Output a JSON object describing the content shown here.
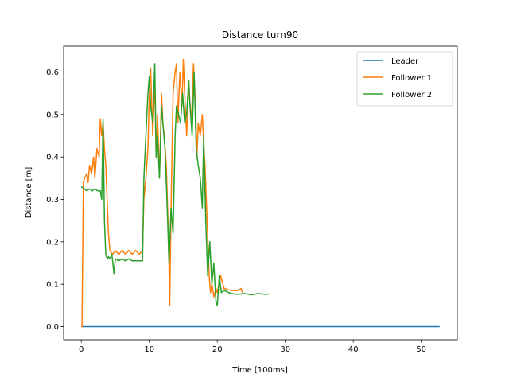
{
  "chart_data": {
    "type": "line",
    "title": "Distance turn90",
    "xlabel": "Time [100ms]",
    "ylabel": "Distance [m]",
    "xlim": [
      -2.6,
      55.3
    ],
    "ylim": [
      -0.031,
      0.661
    ],
    "xticks": [
      0,
      10,
      20,
      30,
      40,
      50
    ],
    "yticks": [
      0.0,
      0.1,
      0.2,
      0.3,
      0.4,
      0.5,
      0.6
    ],
    "xtick_labels": [
      "0",
      "10",
      "20",
      "30",
      "40",
      "50"
    ],
    "ytick_labels": [
      "0.0",
      "0.1",
      "0.2",
      "0.3",
      "0.4",
      "0.5",
      "0.6"
    ],
    "legend_position": "top-right",
    "series": [
      {
        "name": "Leader",
        "color": "#1f77b4",
        "x": [
          0,
          52.7
        ],
        "y": [
          0.0,
          0.0
        ]
      },
      {
        "name": "Follower 1",
        "color": "#ff7f0e",
        "x": [
          0,
          0.1,
          0.3,
          0.5,
          0.8,
          1.0,
          1.2,
          1.5,
          1.8,
          2.0,
          2.3,
          2.6,
          2.8,
          3.0,
          3.2,
          3.4,
          3.6,
          3.8,
          4.0,
          4.2,
          4.6,
          5.0,
          5.5,
          6.0,
          6.5,
          7.0,
          7.5,
          8.0,
          8.5,
          9.0,
          9.2,
          9.5,
          9.8,
          10.0,
          10.2,
          10.5,
          10.8,
          11.0,
          11.2,
          11.5,
          11.8,
          12.0,
          12.2,
          12.5,
          12.8,
          13.0,
          13.2,
          13.5,
          13.8,
          14.0,
          14.2,
          14.5,
          14.8,
          15.0,
          15.2,
          15.5,
          15.8,
          16.0,
          16.2,
          16.5,
          16.8,
          17.0,
          17.2,
          17.5,
          17.8,
          18.0,
          18.2,
          18.5,
          18.8,
          19.0,
          19.2,
          19.5,
          19.8,
          20.0,
          20.5,
          21.0,
          22.0,
          23.0,
          23.5,
          23.7
        ],
        "y": [
          0.0,
          0.0,
          0.34,
          0.35,
          0.36,
          0.34,
          0.38,
          0.36,
          0.4,
          0.35,
          0.42,
          0.4,
          0.49,
          0.45,
          0.48,
          0.42,
          0.38,
          0.3,
          0.22,
          0.18,
          0.17,
          0.18,
          0.17,
          0.18,
          0.17,
          0.18,
          0.17,
          0.18,
          0.17,
          0.18,
          0.3,
          0.35,
          0.42,
          0.55,
          0.61,
          0.45,
          0.58,
          0.4,
          0.5,
          0.35,
          0.55,
          0.48,
          0.45,
          0.38,
          0.22,
          0.05,
          0.28,
          0.55,
          0.6,
          0.62,
          0.48,
          0.6,
          0.52,
          0.63,
          0.55,
          0.45,
          0.58,
          0.52,
          0.48,
          0.62,
          0.52,
          0.4,
          0.48,
          0.45,
          0.5,
          0.43,
          0.38,
          0.25,
          0.12,
          0.08,
          0.1,
          0.07,
          0.09,
          0.08,
          0.12,
          0.09,
          0.085,
          0.085,
          0.09,
          0.08
        ]
      },
      {
        "name": "Follower 2",
        "color": "#2ca02c",
        "x": [
          0,
          0.4,
          0.8,
          1.2,
          1.6,
          2.0,
          2.4,
          2.8,
          3.0,
          3.2,
          3.4,
          3.6,
          3.8,
          4.0,
          4.2,
          4.5,
          4.8,
          5.0,
          5.5,
          6.0,
          6.5,
          7.0,
          7.5,
          8.0,
          8.5,
          9.0,
          9.2,
          9.5,
          9.8,
          10.0,
          10.2,
          10.5,
          10.8,
          11.0,
          11.2,
          11.5,
          11.8,
          12.0,
          12.3,
          12.6,
          12.9,
          13.2,
          13.5,
          13.8,
          14.0,
          14.3,
          14.6,
          14.9,
          15.2,
          15.5,
          15.8,
          16.0,
          16.3,
          16.6,
          16.9,
          17.2,
          17.5,
          17.8,
          18.0,
          18.3,
          18.6,
          18.9,
          19.2,
          19.5,
          19.8,
          20.0,
          20.3,
          20.6,
          21.0,
          22.0,
          23.0,
          24.0,
          25.0,
          26.0,
          27.0,
          27.6
        ],
        "y": [
          0.33,
          0.325,
          0.32,
          0.325,
          0.32,
          0.325,
          0.32,
          0.32,
          0.3,
          0.49,
          0.25,
          0.17,
          0.16,
          0.165,
          0.16,
          0.17,
          0.125,
          0.16,
          0.155,
          0.16,
          0.155,
          0.16,
          0.155,
          0.155,
          0.155,
          0.155,
          0.35,
          0.45,
          0.55,
          0.59,
          0.52,
          0.48,
          0.62,
          0.4,
          0.45,
          0.35,
          0.52,
          0.48,
          0.42,
          0.3,
          0.15,
          0.28,
          0.22,
          0.45,
          0.52,
          0.5,
          0.48,
          0.55,
          0.48,
          0.5,
          0.58,
          0.52,
          0.45,
          0.6,
          0.42,
          0.38,
          0.35,
          0.28,
          0.45,
          0.25,
          0.12,
          0.2,
          0.1,
          0.15,
          0.06,
          0.05,
          0.12,
          0.08,
          0.085,
          0.078,
          0.076,
          0.078,
          0.075,
          0.078,
          0.076,
          0.077
        ]
      }
    ]
  }
}
